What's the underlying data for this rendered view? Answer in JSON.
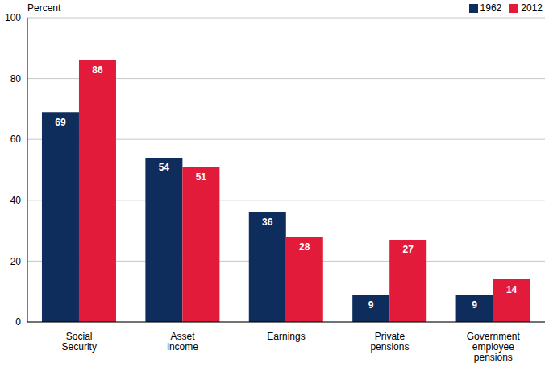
{
  "chart_data": {
    "type": "bar",
    "y_label": "Percent",
    "categories": [
      "Social Security",
      "Asset income",
      "Earnings",
      "Private pensions",
      "Government employee pensions"
    ],
    "series": [
      {
        "name": "1962",
        "color": "#0f2d5c",
        "values": [
          69,
          54,
          36,
          9,
          9
        ]
      },
      {
        "name": "2012",
        "color": "#e31b3b",
        "values": [
          86,
          51,
          28,
          27,
          14
        ]
      }
    ],
    "ylim": [
      0,
      100
    ],
    "yticks": [
      0,
      20,
      40,
      60,
      80,
      100
    ],
    "grid": true,
    "legend": "top right",
    "data_labels": true
  }
}
